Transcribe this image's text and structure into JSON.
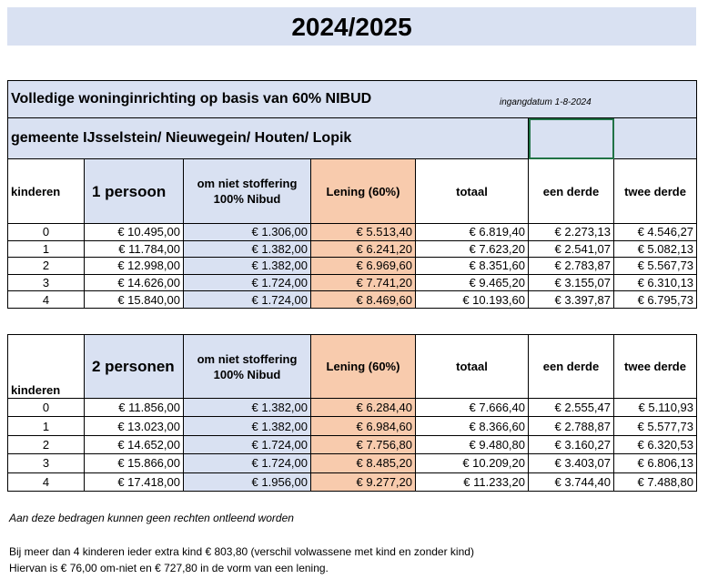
{
  "title": "2024/2025",
  "header": {
    "main_title": "Volledige woninginrichting op basis van 60% NIBUD",
    "effective_date": "ingangdatum 1-8-2024",
    "municipalities": "gemeente IJsselstein/ Nieuwegein/ Houten/ Lopik"
  },
  "columns": {
    "kinderen": "kinderen",
    "om_niet": "om niet stoffering 100% Nibud",
    "lening": "Lening (60%)",
    "totaal": "totaal",
    "een_derde": "een derde",
    "twee_derde": "twee derde"
  },
  "colors": {
    "blue": "#d9e1f2",
    "orange": "#f8cbad",
    "selection": "#217346"
  },
  "tables": [
    {
      "label": "1 persoon",
      "rows": [
        [
          "0",
          "€ 10.495,00",
          "€ 1.306,00",
          "€ 5.513,40",
          "€ 6.819,40",
          "€ 2.273,13",
          "€ 4.546,27"
        ],
        [
          "1",
          "€ 11.784,00",
          "€ 1.382,00",
          "€ 6.241,20",
          "€ 7.623,20",
          "€ 2.541,07",
          "€ 5.082,13"
        ],
        [
          "2",
          "€ 12.998,00",
          "€ 1.382,00",
          "€ 6.969,60",
          "€ 8.351,60",
          "€ 2.783,87",
          "€ 5.567,73"
        ],
        [
          "3",
          "€ 14.626,00",
          "€ 1.724,00",
          "€ 7.741,20",
          "€ 9.465,20",
          "€ 3.155,07",
          "€ 6.310,13"
        ],
        [
          "4",
          "€ 15.840,00",
          "€ 1.724,00",
          "€ 8.469,60",
          "€ 10.193,60",
          "€ 3.397,87",
          "€ 6.795,73"
        ]
      ]
    },
    {
      "label": "2 personen",
      "rows": [
        [
          "0",
          "€ 11.856,00",
          "€ 1.382,00",
          "€ 6.284,40",
          "€ 7.666,40",
          "€ 2.555,47",
          "€ 5.110,93"
        ],
        [
          "1",
          "€ 13.023,00",
          "€ 1.382,00",
          "€ 6.984,60",
          "€ 8.366,60",
          "€ 2.788,87",
          "€ 5.577,73"
        ],
        [
          "2",
          "€ 14.652,00",
          "€ 1.724,00",
          "€ 7.756,80",
          "€ 9.480,80",
          "€ 3.160,27",
          "€ 6.320,53"
        ],
        [
          "3",
          "€ 15.866,00",
          "€ 1.724,00",
          "€ 8.485,20",
          "€ 10.209,20",
          "€ 3.403,07",
          "€ 6.806,13"
        ],
        [
          "4",
          "€ 17.418,00",
          "€ 1.956,00",
          "€ 9.277,20",
          "€ 11.233,20",
          "€ 3.744,40",
          "€ 7.488,80"
        ]
      ]
    }
  ],
  "notes": {
    "disclaimer": "Aan deze bedragen kunnen geen rechten ontleend worden",
    "line1": "Bij meer dan 4 kinderen ieder extra kind € 803,80 (verschil volwassene met kind en zonder kind)",
    "line2": "Hiervan is € 76,00 om-niet en € 727,80 in de vorm van een lening."
  }
}
